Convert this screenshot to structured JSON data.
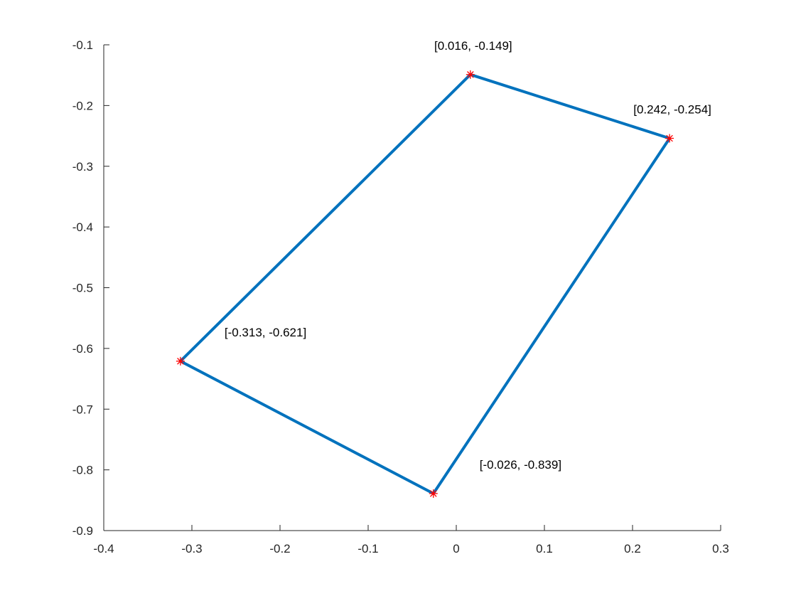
{
  "chart_data": {
    "type": "line",
    "title": "",
    "xlabel": "",
    "ylabel": "",
    "xlim": [
      -0.4,
      0.3
    ],
    "ylim": [
      -0.9,
      -0.1
    ],
    "x_ticks": [
      -0.4,
      -0.3,
      -0.2,
      -0.1,
      0,
      0.1,
      0.2,
      0.3
    ],
    "x_tick_labels": [
      "-0.4",
      "-0.3",
      "-0.2",
      "-0.1",
      "0",
      "0.1",
      "0.2",
      "0.3"
    ],
    "y_ticks": [
      -0.9,
      -0.8,
      -0.7,
      -0.6,
      -0.5,
      -0.4,
      -0.3,
      -0.2,
      -0.1
    ],
    "y_tick_labels": [
      "-0.9",
      "-0.8",
      "-0.7",
      "-0.6",
      "-0.5",
      "-0.4",
      "-0.3",
      "-0.2",
      "-0.1"
    ],
    "grid": false,
    "legend": "none",
    "series": [
      {
        "closed": true,
        "color": "#0072BD",
        "marker": "asterisk",
        "marker_color": "#FF0000",
        "points": [
          {
            "x": 0.016,
            "y": -0.149,
            "label": "[0.016, -0.149]"
          },
          {
            "x": 0.242,
            "y": -0.254,
            "label": "[0.242, -0.254]"
          },
          {
            "x": -0.026,
            "y": -0.839,
            "label": "[-0.026, -0.839]"
          },
          {
            "x": -0.313,
            "y": -0.621,
            "label": "[-0.313, -0.621]"
          }
        ]
      }
    ]
  }
}
